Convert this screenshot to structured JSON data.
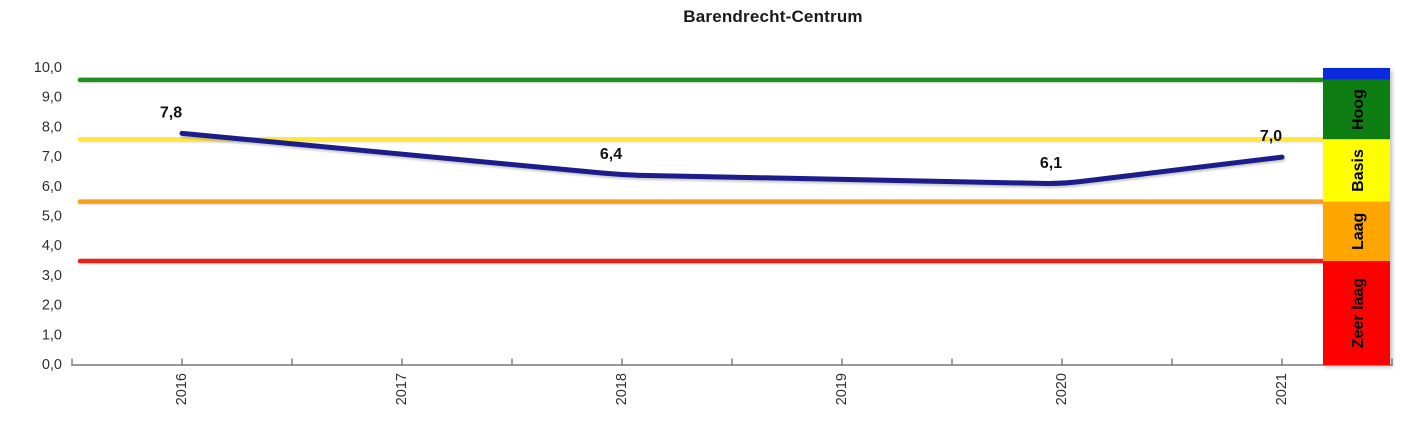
{
  "title": "Barendrecht-Centrum",
  "chart_data": {
    "type": "line",
    "title": "Barendrecht-Centrum",
    "categories": [
      "2016",
      "2017",
      "2018",
      "2019",
      "2020",
      "2021"
    ],
    "xlabel": "",
    "ylabel": "",
    "ylim": [
      0,
      10
    ],
    "ytick_step": 1,
    "ytick_labels": [
      "0,0",
      "1,0",
      "2,0",
      "3,0",
      "4,0",
      "5,0",
      "6,0",
      "7,0",
      "8,0",
      "9,0",
      "10,0"
    ],
    "decimal_style": "comma",
    "grid": false,
    "x_tick_label_rotation_deg": -90,
    "axis_color": "#999999",
    "series": [
      {
        "name": "Barendrecht-Centrum score",
        "color": "#1c1c8a",
        "line_width": 5,
        "points": [
          {
            "category": "2016",
            "value": 7.8,
            "label": "7,8"
          },
          {
            "category": "2018",
            "value": 6.4,
            "label": "6,4"
          },
          {
            "category": "2020",
            "value": 6.1,
            "label": "6,1"
          },
          {
            "category": "2021",
            "value": 7.0,
            "label": "7,0"
          }
        ]
      }
    ],
    "reference_lines": [
      {
        "name": "grens-hoog",
        "value": 9.6,
        "color": "#1f8f1f"
      },
      {
        "name": "grens-basis",
        "value": 7.6,
        "color": "#ffe83a"
      },
      {
        "name": "grens-laag",
        "value": 5.5,
        "color": "#f7a01d"
      },
      {
        "name": "grens-zeer-laag",
        "value": 3.5,
        "color": "#e5231c"
      }
    ],
    "legend_position": "right",
    "bands": [
      {
        "label": "",
        "name": "top",
        "from": 10.0,
        "to": 9.6,
        "color": "#0a2ae0"
      },
      {
        "label": "Hoog",
        "name": "hoog",
        "from": 9.6,
        "to": 7.6,
        "color": "#0e7e12"
      },
      {
        "label": "Basis",
        "name": "basis",
        "from": 7.6,
        "to": 5.5,
        "color": "#ffff00"
      },
      {
        "label": "Laag",
        "name": "laag",
        "from": 5.5,
        "to": 3.5,
        "color": "#ffa500"
      },
      {
        "label": "Zeer laag",
        "name": "zeer-laag",
        "from": 3.5,
        "to": 0.0,
        "color": "#ff0000"
      }
    ]
  }
}
